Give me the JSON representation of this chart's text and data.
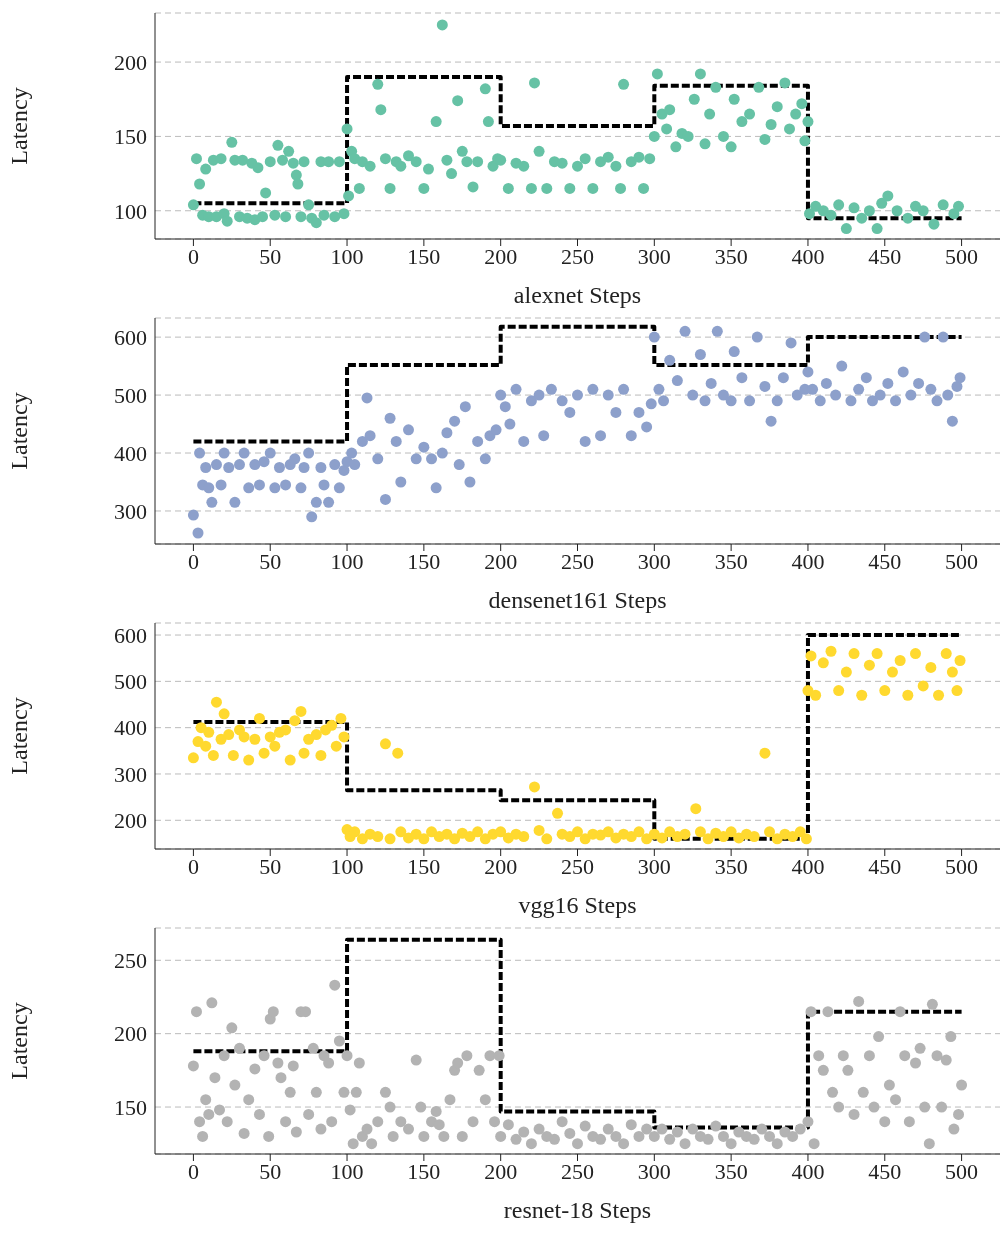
{
  "chart_data": [
    {
      "type": "scatter",
      "xlabel": "alexnet Steps",
      "ylabel": "Latency",
      "xlim": [
        -25,
        525
      ],
      "xticks": [
        0,
        50,
        100,
        150,
        200,
        250,
        300,
        350,
        400,
        450,
        500
      ],
      "ylim": [
        81,
        233
      ],
      "yticks": [
        100,
        150,
        200
      ],
      "grid": "y",
      "marker": "circle",
      "series": [
        {
          "type": "scatter",
          "color": "#66c2a5",
          "x": [
            0,
            2,
            4,
            6,
            8,
            10,
            13,
            15,
            18,
            20,
            22,
            25,
            27,
            30,
            32,
            35,
            38,
            40,
            42,
            45,
            47,
            50,
            53,
            55,
            58,
            60,
            62,
            65,
            67,
            68,
            70,
            72,
            75,
            77,
            80,
            83,
            85,
            88,
            92,
            95,
            98,
            100,
            101,
            103,
            105,
            108,
            110,
            115,
            120,
            122,
            125,
            128,
            132,
            135,
            140,
            145,
            150,
            153,
            158,
            162,
            165,
            168,
            172,
            175,
            178,
            182,
            185,
            190,
            192,
            195,
            198,
            200,
            205,
            210,
            215,
            220,
            222,
            225,
            230,
            235,
            240,
            245,
            250,
            255,
            260,
            265,
            270,
            275,
            278,
            280,
            285,
            290,
            293,
            297,
            300,
            302,
            305,
            308,
            310,
            314,
            318,
            322,
            326,
            330,
            333,
            336,
            340,
            345,
            350,
            352,
            357,
            362,
            368,
            372,
            376,
            380,
            385,
            388,
            392,
            396,
            398,
            400,
            401,
            405,
            410,
            415,
            420,
            425,
            430,
            435,
            440,
            445,
            448,
            452,
            458,
            465,
            470,
            475,
            482,
            488,
            495,
            498
          ],
          "values": [
            104,
            135,
            118,
            97,
            128,
            96,
            134,
            96,
            135,
            98,
            93,
            146,
            134,
            96,
            134,
            95,
            132,
            94,
            129,
            96,
            112,
            133,
            97,
            144,
            134,
            96,
            140,
            132,
            124,
            118,
            96,
            133,
            104,
            95,
            92,
            133,
            97,
            133,
            96,
            133,
            98,
            155,
            110,
            140,
            135,
            115,
            133,
            130,
            185,
            168,
            135,
            115,
            133,
            130,
            137,
            133,
            115,
            128,
            160,
            225,
            134,
            125,
            174,
            140,
            133,
            116,
            133,
            182,
            160,
            130,
            135,
            134,
            115,
            132,
            130,
            115,
            186,
            140,
            115,
            133,
            132,
            115,
            130,
            135,
            115,
            133,
            136,
            130,
            115,
            185,
            133,
            136,
            115,
            135,
            150,
            192,
            165,
            155,
            168,
            143,
            152,
            150,
            175,
            192,
            145,
            165,
            183,
            150,
            143,
            175,
            160,
            165,
            183,
            148,
            158,
            170,
            186,
            155,
            165,
            172,
            147,
            160,
            98,
            103,
            100,
            97,
            104,
            88,
            102,
            95,
            100,
            88,
            105,
            110,
            100,
            95,
            103,
            100,
            91,
            104,
            98,
            103
          ]
        },
        {
          "type": "step",
          "color": "#000000",
          "line_style": "dashed",
          "marker": "none",
          "x": [
            0,
            100,
            200,
            300,
            400,
            500
          ],
          "values": [
            105,
            190,
            157,
            184,
            95,
            95
          ]
        }
      ]
    },
    {
      "type": "scatter",
      "xlabel": "densenet161 Steps",
      "ylabel": "Latency",
      "xlim": [
        -25,
        525
      ],
      "xticks": [
        0,
        50,
        100,
        150,
        200,
        250,
        300,
        350,
        400,
        450,
        500
      ],
      "ylim": [
        243,
        633
      ],
      "yticks": [
        300,
        400,
        500,
        600
      ],
      "grid": "y",
      "marker": "circle",
      "series": [
        {
          "type": "scatter",
          "color": "#8da0cb",
          "x": [
            0,
            3,
            4,
            6,
            8,
            10,
            12,
            15,
            18,
            20,
            23,
            27,
            30,
            33,
            36,
            40,
            43,
            46,
            50,
            53,
            56,
            60,
            63,
            66,
            70,
            72,
            75,
            77,
            80,
            83,
            85,
            88,
            92,
            95,
            98,
            100,
            103,
            105,
            110,
            113,
            115,
            120,
            125,
            128,
            132,
            135,
            140,
            145,
            150,
            155,
            158,
            162,
            165,
            170,
            173,
            177,
            180,
            185,
            190,
            193,
            197,
            200,
            203,
            206,
            210,
            215,
            220,
            225,
            228,
            233,
            240,
            245,
            250,
            255,
            260,
            265,
            270,
            275,
            280,
            285,
            290,
            295,
            298,
            300,
            303,
            306,
            310,
            315,
            320,
            325,
            330,
            333,
            337,
            341,
            345,
            350,
            352,
            357,
            362,
            367,
            372,
            376,
            380,
            384,
            389,
            393,
            398,
            400,
            403,
            408,
            412,
            418,
            422,
            428,
            433,
            438,
            442,
            447,
            452,
            457,
            462,
            467,
            472,
            476,
            480,
            484,
            488,
            491,
            494,
            497,
            499
          ],
          "values": [
            293,
            262,
            400,
            345,
            375,
            340,
            315,
            380,
            345,
            400,
            375,
            315,
            380,
            400,
            340,
            380,
            345,
            385,
            400,
            340,
            375,
            345,
            380,
            390,
            340,
            375,
            400,
            290,
            315,
            375,
            345,
            315,
            380,
            340,
            370,
            385,
            400,
            380,
            420,
            495,
            430,
            390,
            320,
            460,
            420,
            350,
            440,
            390,
            410,
            390,
            340,
            400,
            435,
            455,
            380,
            480,
            350,
            420,
            390,
            430,
            440,
            500,
            480,
            450,
            510,
            420,
            490,
            500,
            430,
            510,
            490,
            470,
            500,
            420,
            510,
            430,
            500,
            470,
            510,
            430,
            470,
            445,
            485,
            600,
            510,
            490,
            560,
            525,
            610,
            500,
            570,
            490,
            520,
            610,
            500,
            490,
            575,
            530,
            490,
            600,
            515,
            455,
            490,
            530,
            590,
            500,
            510,
            540,
            510,
            490,
            520,
            500,
            550,
            490,
            510,
            530,
            490,
            500,
            520,
            490,
            540,
            500,
            520,
            600,
            510,
            490,
            600,
            500,
            455,
            515,
            530
          ]
        },
        {
          "type": "step",
          "color": "#000000",
          "line_style": "dashed",
          "marker": "none",
          "x": [
            0,
            100,
            200,
            300,
            400,
            500
          ],
          "values": [
            420,
            552,
            618,
            552,
            600,
            600
          ]
        }
      ]
    },
    {
      "type": "scatter",
      "xlabel": "vgg16 Steps",
      "ylabel": "Latency",
      "xlim": [
        -25,
        525
      ],
      "xticks": [
        0,
        50,
        100,
        150,
        200,
        250,
        300,
        350,
        400,
        450,
        500
      ],
      "ylim": [
        138,
        626
      ],
      "yticks": [
        200,
        300,
        400,
        500,
        600
      ],
      "grid": "y",
      "marker": "circle",
      "series": [
        {
          "type": "scatter",
          "color": "#ffd92f",
          "x": [
            0,
            3,
            5,
            8,
            10,
            13,
            15,
            18,
            20,
            23,
            26,
            30,
            33,
            36,
            40,
            43,
            46,
            50,
            53,
            56,
            60,
            63,
            66,
            70,
            72,
            75,
            80,
            83,
            86,
            90,
            93,
            96,
            98,
            100,
            102,
            105,
            110,
            115,
            120,
            125,
            128,
            133,
            135,
            140,
            145,
            150,
            155,
            160,
            165,
            170,
            175,
            180,
            185,
            190,
            195,
            200,
            205,
            210,
            215,
            222,
            225,
            230,
            237,
            240,
            245,
            250,
            255,
            260,
            265,
            270,
            275,
            280,
            285,
            290,
            295,
            300,
            305,
            310,
            315,
            320,
            327,
            330,
            335,
            340,
            345,
            350,
            355,
            360,
            365,
            372,
            375,
            380,
            385,
            390,
            395,
            399,
            400,
            402,
            405,
            410,
            415,
            420,
            425,
            430,
            435,
            440,
            445,
            450,
            455,
            460,
            465,
            470,
            475,
            480,
            485,
            490,
            494,
            497,
            499
          ],
          "values": [
            335,
            370,
            400,
            360,
            390,
            340,
            455,
            375,
            430,
            385,
            340,
            395,
            380,
            330,
            375,
            420,
            345,
            380,
            360,
            390,
            395,
            330,
            415,
            435,
            345,
            375,
            385,
            340,
            395,
            405,
            360,
            420,
            380,
            180,
            165,
            175,
            160,
            170,
            165,
            365,
            160,
            345,
            175,
            162,
            170,
            160,
            175,
            165,
            170,
            160,
            172,
            165,
            175,
            160,
            170,
            175,
            162,
            170,
            165,
            272,
            178,
            160,
            215,
            170,
            165,
            175,
            160,
            170,
            168,
            175,
            162,
            170,
            165,
            175,
            160,
            170,
            162,
            175,
            165,
            170,
            225,
            175,
            160,
            172,
            165,
            175,
            162,
            170,
            165,
            345,
            175,
            160,
            170,
            165,
            175,
            160,
            480,
            555,
            470,
            540,
            565,
            480,
            520,
            560,
            470,
            535,
            560,
            480,
            520,
            545,
            470,
            560,
            490,
            530,
            470,
            560,
            520,
            480,
            545
          ]
        },
        {
          "type": "step",
          "color": "#000000",
          "line_style": "dashed",
          "marker": "none",
          "x": [
            0,
            100,
            200,
            300,
            400,
            500
          ],
          "values": [
            412,
            265,
            243,
            160,
            600,
            600
          ]
        }
      ]
    },
    {
      "type": "scatter",
      "xlabel": "resnet-18 Steps",
      "ylabel": "Latency",
      "xlim": [
        -25,
        525
      ],
      "xticks": [
        0,
        50,
        100,
        150,
        200,
        250,
        300,
        350,
        400,
        450,
        500
      ],
      "ylim": [
        118,
        272
      ],
      "yticks": [
        150,
        200,
        250
      ],
      "grid": "y",
      "marker": "circle",
      "series": [
        {
          "type": "scatter",
          "color": "#b3b3b3",
          "x": [
            0,
            2,
            4,
            6,
            8,
            10,
            12,
            14,
            17,
            20,
            22,
            25,
            27,
            30,
            33,
            36,
            40,
            43,
            46,
            49,
            50,
            52,
            55,
            57,
            60,
            63,
            65,
            67,
            70,
            73,
            75,
            78,
            80,
            83,
            85,
            88,
            90,
            92,
            95,
            98,
            100,
            102,
            104,
            106,
            108,
            110,
            113,
            116,
            120,
            125,
            128,
            130,
            135,
            140,
            145,
            148,
            150,
            155,
            158,
            160,
            163,
            167,
            170,
            172,
            175,
            178,
            182,
            186,
            190,
            193,
            196,
            199,
            200,
            205,
            210,
            215,
            220,
            225,
            230,
            235,
            240,
            245,
            250,
            255,
            260,
            265,
            270,
            275,
            280,
            285,
            290,
            295,
            300,
            305,
            310,
            315,
            320,
            325,
            330,
            335,
            340,
            345,
            350,
            355,
            360,
            365,
            370,
            375,
            380,
            385,
            390,
            395,
            400,
            402,
            404,
            407,
            410,
            413,
            416,
            420,
            423,
            426,
            430,
            433,
            436,
            440,
            443,
            446,
            450,
            453,
            457,
            460,
            463,
            466,
            470,
            473,
            476,
            479,
            481,
            484,
            487,
            490,
            493,
            495,
            498,
            500
          ],
          "values": [
            178,
            215,
            140,
            130,
            155,
            145,
            221,
            170,
            148,
            185,
            140,
            204,
            165,
            190,
            132,
            155,
            176,
            145,
            185,
            130,
            210,
            215,
            180,
            170,
            140,
            160,
            178,
            133,
            215,
            215,
            145,
            190,
            160,
            135,
            185,
            180,
            140,
            233,
            195,
            160,
            185,
            148,
            125,
            160,
            180,
            130,
            135,
            125,
            140,
            160,
            150,
            130,
            140,
            135,
            182,
            150,
            130,
            140,
            147,
            138,
            130,
            155,
            175,
            180,
            130,
            185,
            140,
            175,
            155,
            185,
            140,
            185,
            130,
            138,
            128,
            133,
            125,
            135,
            130,
            128,
            140,
            132,
            125,
            137,
            130,
            128,
            135,
            130,
            125,
            138,
            130,
            135,
            130,
            135,
            128,
            133,
            125,
            135,
            130,
            128,
            137,
            130,
            125,
            133,
            130,
            128,
            135,
            130,
            125,
            133,
            130,
            135,
            140,
            215,
            125,
            185,
            175,
            215,
            160,
            150,
            185,
            175,
            145,
            222,
            160,
            185,
            150,
            198,
            140,
            165,
            155,
            215,
            185,
            140,
            180,
            190,
            150,
            125,
            220,
            185,
            150,
            182,
            198,
            135,
            145,
            165
          ]
        },
        {
          "type": "step",
          "color": "#000000",
          "line_style": "dashed",
          "marker": "none",
          "x": [
            0,
            100,
            200,
            300,
            400,
            500
          ],
          "values": [
            188,
            264,
            147,
            136,
            215,
            215
          ]
        }
      ]
    }
  ]
}
